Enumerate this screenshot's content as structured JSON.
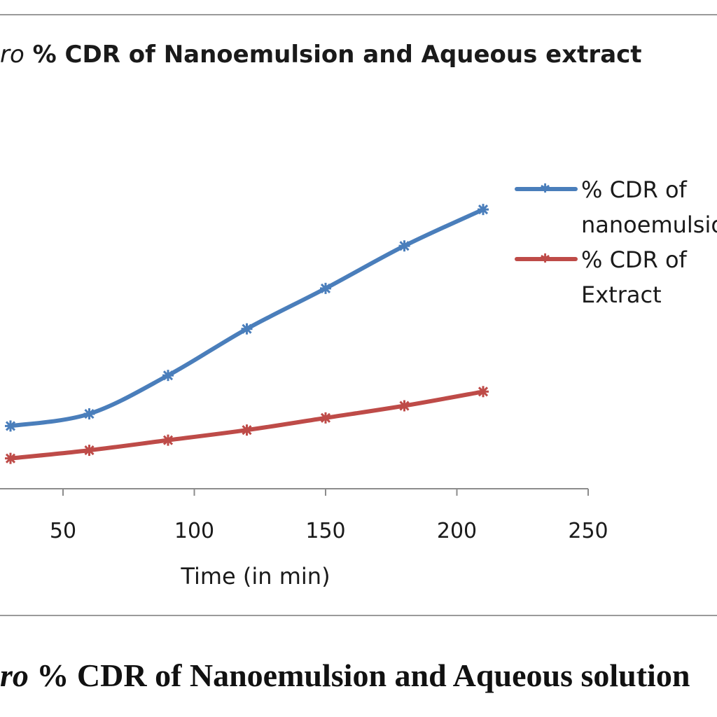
{
  "chart_data": {
    "type": "line",
    "title_prefix": "ro",
    "title": "% CDR of Nanoemulsion and Aqueous extract",
    "xlabel": "Time (in min)",
    "ylabel": "",
    "x_ticks": [
      50,
      100,
      150,
      200,
      250
    ],
    "xlim": [
      30,
      250
    ],
    "ylim": [
      0,
      100
    ],
    "grid": false,
    "legend_position": "right",
    "series": [
      {
        "name": "% CDR of nanoemulsion",
        "color": "#4a7ebb",
        "x": [
          30,
          60,
          90,
          120,
          150,
          180,
          210
        ],
        "y": [
          15.5,
          18.5,
          28,
          39.5,
          49.5,
          60,
          69
        ]
      },
      {
        "name": "% CDR of Extract",
        "color": "#be4b48",
        "x": [
          30,
          60,
          90,
          120,
          150,
          180,
          210
        ],
        "y": [
          7.5,
          9.5,
          12,
          14.5,
          17.5,
          20.5,
          24
        ]
      }
    ]
  },
  "legend": {
    "items": [
      {
        "line1": "% CDR of",
        "line2": "nanoemulsion"
      },
      {
        "line1": "% CDR of",
        "line2": "Extract"
      }
    ]
  },
  "caption": {
    "prefix": "ro",
    "text": " % CDR of Nanoemulsion and Aqueous solution"
  }
}
